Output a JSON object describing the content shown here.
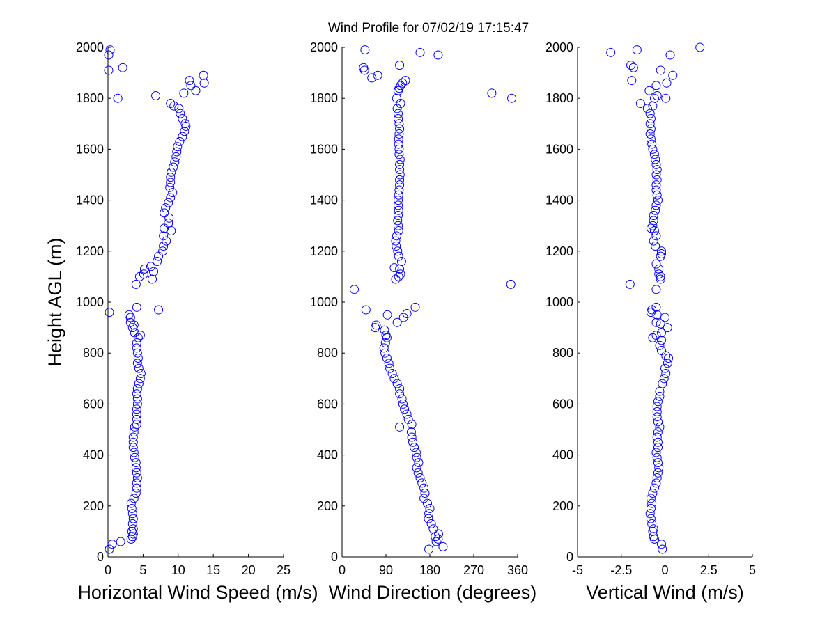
{
  "figure": {
    "title": "Wind Profile for  07/02/19 17:15:47",
    "marker_color": "#0000ff"
  },
  "chart_data": [
    {
      "type": "scatter",
      "title": "",
      "xlabel": "Horizontal Wind Speed (m/s)",
      "ylabel": "Height AGL (m)",
      "xlim": [
        0,
        25
      ],
      "ylim": [
        0,
        2000
      ],
      "xticks": [
        0,
        5,
        10,
        15,
        20,
        25
      ],
      "xtick_labels": [
        "0",
        "5",
        "10",
        "15",
        "20",
        "25"
      ],
      "yticks": [
        0,
        200,
        400,
        600,
        800,
        1000,
        1200,
        1400,
        1600,
        1800,
        2000
      ],
      "ytick_labels": [
        "0",
        "200",
        "400",
        "600",
        "800",
        "1000",
        "1200",
        "1400",
        "1600",
        "1800",
        "2000"
      ],
      "grid": false,
      "points": [
        [
          0.2,
          30
        ],
        [
          0.6,
          50
        ],
        [
          1.8,
          60
        ],
        [
          3.3,
          70
        ],
        [
          3.5,
          80
        ],
        [
          3.6,
          90
        ],
        [
          3.4,
          100
        ],
        [
          3.6,
          110
        ],
        [
          3.5,
          130
        ],
        [
          3.6,
          150
        ],
        [
          3.5,
          170
        ],
        [
          3.4,
          190
        ],
        [
          3.3,
          210
        ],
        [
          3.7,
          230
        ],
        [
          4.0,
          250
        ],
        [
          4.1,
          270
        ],
        [
          4.1,
          290
        ],
        [
          4.2,
          310
        ],
        [
          4.1,
          330
        ],
        [
          4.0,
          350
        ],
        [
          4.0,
          370
        ],
        [
          3.8,
          390
        ],
        [
          3.7,
          410
        ],
        [
          3.6,
          430
        ],
        [
          3.6,
          450
        ],
        [
          3.6,
          470
        ],
        [
          3.7,
          490
        ],
        [
          3.8,
          510
        ],
        [
          4.1,
          520
        ],
        [
          4.1,
          540
        ],
        [
          4.1,
          560
        ],
        [
          4.1,
          580
        ],
        [
          4.2,
          600
        ],
        [
          4.2,
          620
        ],
        [
          4.1,
          640
        ],
        [
          4.2,
          660
        ],
        [
          4.4,
          680
        ],
        [
          4.6,
          700
        ],
        [
          4.7,
          720
        ],
        [
          4.4,
          740
        ],
        [
          4.2,
          760
        ],
        [
          4.3,
          780
        ],
        [
          4.2,
          800
        ],
        [
          4.1,
          820
        ],
        [
          4.1,
          840
        ],
        [
          4.3,
          860
        ],
        [
          4.6,
          870
        ],
        [
          3.8,
          880
        ],
        [
          3.5,
          900
        ],
        [
          3.7,
          910
        ],
        [
          3.2,
          920
        ],
        [
          3.2,
          940
        ],
        [
          3.0,
          950
        ],
        [
          0.2,
          960
        ],
        [
          7.2,
          970
        ],
        [
          4.1,
          980
        ],
        [
          4.0,
          1070
        ],
        [
          4.5,
          1100
        ],
        [
          6.3,
          1090
        ],
        [
          5.1,
          1110
        ],
        [
          5.2,
          1130
        ],
        [
          6.1,
          1140
        ],
        [
          6.5,
          1120
        ],
        [
          7.0,
          1160
        ],
        [
          7.2,
          1180
        ],
        [
          7.8,
          1200
        ],
        [
          7.9,
          1220
        ],
        [
          8.3,
          1240
        ],
        [
          7.9,
          1260
        ],
        [
          9.0,
          1280
        ],
        [
          8.0,
          1290
        ],
        [
          8.6,
          1310
        ],
        [
          8.7,
          1330
        ],
        [
          8.0,
          1350
        ],
        [
          8.2,
          1370
        ],
        [
          8.6,
          1390
        ],
        [
          8.9,
          1410
        ],
        [
          9.2,
          1430
        ],
        [
          8.8,
          1450
        ],
        [
          8.9,
          1470
        ],
        [
          8.9,
          1490
        ],
        [
          9.0,
          1510
        ],
        [
          9.3,
          1530
        ],
        [
          9.5,
          1550
        ],
        [
          9.7,
          1570
        ],
        [
          9.8,
          1590
        ],
        [
          9.9,
          1610
        ],
        [
          10.2,
          1630
        ],
        [
          10.6,
          1650
        ],
        [
          10.9,
          1670
        ],
        [
          11.1,
          1690
        ],
        [
          11.0,
          1700
        ],
        [
          10.6,
          1720
        ],
        [
          10.3,
          1740
        ],
        [
          10.1,
          1760
        ],
        [
          9.4,
          1770
        ],
        [
          8.9,
          1780
        ],
        [
          6.8,
          1810
        ],
        [
          1.4,
          1800
        ],
        [
          10.8,
          1820
        ],
        [
          12.5,
          1830
        ],
        [
          11.8,
          1850
        ],
        [
          13.7,
          1860
        ],
        [
          11.6,
          1870
        ],
        [
          13.6,
          1890
        ],
        [
          2.1,
          1920
        ],
        [
          0.1,
          1910
        ],
        [
          0.1,
          1970
        ],
        [
          0.3,
          1990
        ]
      ]
    },
    {
      "type": "scatter",
      "title": "",
      "xlabel": "Wind Direction (degrees)",
      "ylabel": "",
      "xlim": [
        0,
        360
      ],
      "ylim": [
        0,
        2000
      ],
      "xticks": [
        0,
        90,
        180,
        270,
        360
      ],
      "xtick_labels": [
        "0",
        "90",
        "180",
        "270",
        "360"
      ],
      "yticks": [
        0,
        200,
        400,
        600,
        800,
        1000,
        1200,
        1400,
        1600,
        1800,
        2000
      ],
      "ytick_labels": [
        "0",
        "200",
        "400",
        "600",
        "800",
        "1000",
        "1200",
        "1400",
        "1600",
        "1800",
        "2000"
      ],
      "grid": false,
      "points": [
        [
          178,
          30
        ],
        [
          207,
          40
        ],
        [
          193,
          60
        ],
        [
          197,
          70
        ],
        [
          191,
          80
        ],
        [
          198,
          90
        ],
        [
          187,
          110
        ],
        [
          183,
          130
        ],
        [
          177,
          150
        ],
        [
          178,
          170
        ],
        [
          180,
          190
        ],
        [
          175,
          210
        ],
        [
          168,
          230
        ],
        [
          170,
          250
        ],
        [
          168,
          270
        ],
        [
          164,
          290
        ],
        [
          160,
          310
        ],
        [
          156,
          330
        ],
        [
          153,
          350
        ],
        [
          157,
          370
        ],
        [
          153,
          390
        ],
        [
          152,
          410
        ],
        [
          148,
          430
        ],
        [
          145,
          450
        ],
        [
          143,
          470
        ],
        [
          142,
          490
        ],
        [
          143,
          520
        ],
        [
          118,
          510
        ],
        [
          136,
          540
        ],
        [
          133,
          560
        ],
        [
          128,
          580
        ],
        [
          125,
          600
        ],
        [
          123,
          620
        ],
        [
          118,
          640
        ],
        [
          118,
          660
        ],
        [
          113,
          680
        ],
        [
          107,
          700
        ],
        [
          103,
          720
        ],
        [
          98,
          740
        ],
        [
          96,
          760
        ],
        [
          92,
          780
        ],
        [
          88,
          800
        ],
        [
          86,
          820
        ],
        [
          89,
          840
        ],
        [
          92,
          860
        ],
        [
          90,
          870
        ],
        [
          87,
          890
        ],
        [
          68,
          900
        ],
        [
          70,
          910
        ],
        [
          113,
          920
        ],
        [
          126,
          940
        ],
        [
          133,
          955
        ],
        [
          93,
          950
        ],
        [
          49,
          970
        ],
        [
          150,
          980
        ],
        [
          25,
          1050
        ],
        [
          346,
          1070
        ],
        [
          110,
          1090
        ],
        [
          116,
          1100
        ],
        [
          120,
          1110
        ],
        [
          118,
          1130
        ],
        [
          107,
          1135
        ],
        [
          122,
          1160
        ],
        [
          116,
          1180
        ],
        [
          114,
          1200
        ],
        [
          111,
          1220
        ],
        [
          110,
          1240
        ],
        [
          112,
          1260
        ],
        [
          116,
          1280
        ],
        [
          115,
          1300
        ],
        [
          114,
          1320
        ],
        [
          115,
          1340
        ],
        [
          116,
          1360
        ],
        [
          115,
          1380
        ],
        [
          115,
          1400
        ],
        [
          116,
          1420
        ],
        [
          117,
          1440
        ],
        [
          118,
          1460
        ],
        [
          118,
          1480
        ],
        [
          119,
          1500
        ],
        [
          118,
          1520
        ],
        [
          118,
          1540
        ],
        [
          119,
          1560
        ],
        [
          117,
          1580
        ],
        [
          117,
          1600
        ],
        [
          116,
          1620
        ],
        [
          116,
          1640
        ],
        [
          117,
          1660
        ],
        [
          118,
          1680
        ],
        [
          117,
          1700
        ],
        [
          115,
          1720
        ],
        [
          115,
          1740
        ],
        [
          113,
          1760
        ],
        [
          120,
          1780
        ],
        [
          112,
          1800
        ],
        [
          115,
          1830
        ],
        [
          120,
          1850
        ],
        [
          117,
          1840
        ],
        [
          124,
          1860
        ],
        [
          130,
          1870
        ],
        [
          73,
          1890
        ],
        [
          61,
          1880
        ],
        [
          44,
          1920
        ],
        [
          46,
          1910
        ],
        [
          118,
          1930
        ],
        [
          348,
          1800
        ],
        [
          307,
          1820
        ],
        [
          160,
          1980
        ],
        [
          197,
          1970
        ],
        [
          47,
          1990
        ]
      ]
    },
    {
      "type": "scatter",
      "title": "",
      "xlabel": "Vertical Wind (m/s)",
      "ylabel": "",
      "xlim": [
        -5,
        5
      ],
      "ylim": [
        0,
        2000
      ],
      "xticks": [
        -5,
        -2.5,
        0,
        2.5,
        5
      ],
      "xtick_labels": [
        "-5",
        "-2.5",
        "0",
        "2.5",
        "5"
      ],
      "yticks": [
        0,
        200,
        400,
        600,
        800,
        1000,
        1200,
        1400,
        1600,
        1800,
        2000
      ],
      "ytick_labels": [
        "0",
        "200",
        "400",
        "600",
        "800",
        "1000",
        "1200",
        "1400",
        "1600",
        "1800",
        "2000"
      ],
      "grid": false,
      "points": [
        [
          -0.15,
          30
        ],
        [
          -0.2,
          50
        ],
        [
          -0.6,
          70
        ],
        [
          -0.65,
          80
        ],
        [
          -0.7,
          100
        ],
        [
          -0.65,
          110
        ],
        [
          -0.75,
          130
        ],
        [
          -0.8,
          150
        ],
        [
          -0.85,
          170
        ],
        [
          -0.8,
          190
        ],
        [
          -0.75,
          210
        ],
        [
          -0.8,
          230
        ],
        [
          -0.7,
          250
        ],
        [
          -0.6,
          270
        ],
        [
          -0.5,
          290
        ],
        [
          -0.45,
          310
        ],
        [
          -0.4,
          330
        ],
        [
          -0.35,
          350
        ],
        [
          -0.4,
          370
        ],
        [
          -0.45,
          390
        ],
        [
          -0.5,
          410
        ],
        [
          -0.4,
          430
        ],
        [
          -0.4,
          450
        ],
        [
          -0.45,
          470
        ],
        [
          -0.4,
          490
        ],
        [
          -0.3,
          510
        ],
        [
          -0.4,
          530
        ],
        [
          -0.45,
          550
        ],
        [
          -0.45,
          570
        ],
        [
          -0.45,
          590
        ],
        [
          -0.4,
          610
        ],
        [
          -0.3,
          630
        ],
        [
          -0.3,
          650
        ],
        [
          -0.15,
          680
        ],
        [
          -0.05,
          700
        ],
        [
          0.05,
          720
        ],
        [
          0.0,
          740
        ],
        [
          0.15,
          760
        ],
        [
          0.2,
          780
        ],
        [
          0.05,
          790
        ],
        [
          -0.2,
          810
        ],
        [
          -0.3,
          830
        ],
        [
          -0.2,
          850
        ],
        [
          -0.5,
          870
        ],
        [
          -0.7,
          860
        ],
        [
          -0.2,
          880
        ],
        [
          0.15,
          900
        ],
        [
          -0.5,
          920
        ],
        [
          -0.25,
          915
        ],
        [
          0.0,
          940
        ],
        [
          -0.45,
          950
        ],
        [
          -0.8,
          960
        ],
        [
          -0.75,
          970
        ],
        [
          -0.5,
          980
        ],
        [
          -0.5,
          1050
        ],
        [
          -2.0,
          1070
        ],
        [
          -0.25,
          1090
        ],
        [
          -0.25,
          1100
        ],
        [
          -0.35,
          1110
        ],
        [
          -0.35,
          1130
        ],
        [
          -0.5,
          1150
        ],
        [
          -0.25,
          1180
        ],
        [
          -0.2,
          1190
        ],
        [
          -0.2,
          1200
        ],
        [
          -0.55,
          1220
        ],
        [
          -0.65,
          1240
        ],
        [
          -0.5,
          1260
        ],
        [
          -0.6,
          1280
        ],
        [
          -0.8,
          1290
        ],
        [
          -0.7,
          1300
        ],
        [
          -0.65,
          1320
        ],
        [
          -0.65,
          1340
        ],
        [
          -0.55,
          1360
        ],
        [
          -0.5,
          1380
        ],
        [
          -0.4,
          1400
        ],
        [
          -0.45,
          1420
        ],
        [
          -0.5,
          1440
        ],
        [
          -0.5,
          1460
        ],
        [
          -0.45,
          1480
        ],
        [
          -0.5,
          1500
        ],
        [
          -0.45,
          1520
        ],
        [
          -0.5,
          1540
        ],
        [
          -0.55,
          1560
        ],
        [
          -0.6,
          1580
        ],
        [
          -0.7,
          1600
        ],
        [
          -0.75,
          1620
        ],
        [
          -0.8,
          1640
        ],
        [
          -0.85,
          1660
        ],
        [
          -0.8,
          1680
        ],
        [
          -0.85,
          1700
        ],
        [
          -0.8,
          1720
        ],
        [
          -0.85,
          1740
        ],
        [
          -1.0,
          1760
        ],
        [
          -0.7,
          1770
        ],
        [
          -1.4,
          1780
        ],
        [
          -0.6,
          1800
        ],
        [
          0.05,
          1800
        ],
        [
          -0.45,
          1810
        ],
        [
          -0.9,
          1830
        ],
        [
          -0.5,
          1850
        ],
        [
          0.1,
          1860
        ],
        [
          -1.9,
          1870
        ],
        [
          0.45,
          1890
        ],
        [
          -1.8,
          1920
        ],
        [
          -1.95,
          1930
        ],
        [
          -0.25,
          1910
        ],
        [
          -3.1,
          1980
        ],
        [
          -1.6,
          1990
        ],
        [
          0.3,
          1970
        ],
        [
          2.0,
          2000
        ]
      ]
    }
  ]
}
